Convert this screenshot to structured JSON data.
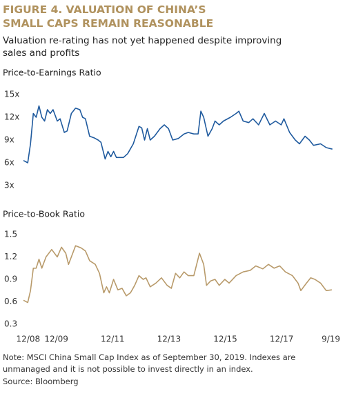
{
  "title": "FIGURE 4. VALUATION OF CHINA’S SMALL CAPS REMAIN REASONABLE",
  "subtitle": "Valuation re-rating has not yet happened despite improving sales and profits",
  "note": "Note: MSCI China Small Cap Index as of September 30, 2019. Indexes are unmanaged and it is not possible to invest directly in an index.",
  "source": "Source: Bloomberg",
  "chart_data": [
    {
      "type": "line",
      "title": "Price-to-Earnings Ratio",
      "color": "#1f5a9e",
      "x": [
        2008.75,
        2008.9,
        2009.0,
        2009.1,
        2009.2,
        2009.3,
        2009.4,
        2009.5,
        2009.6,
        2009.7,
        2009.8,
        2009.95,
        2010.05,
        2010.2,
        2010.3,
        2010.45,
        2010.6,
        2010.75,
        2010.85,
        2010.95,
        2011.1,
        2011.25,
        2011.4,
        2011.5,
        2011.65,
        2011.75,
        2011.85,
        2011.95,
        2012.05,
        2012.3,
        2012.45,
        2012.65,
        2012.85,
        2012.95,
        2013.05,
        2013.15,
        2013.25,
        2013.4,
        2013.6,
        2013.75,
        2013.9,
        2014.05,
        2014.25,
        2014.45,
        2014.6,
        2014.8,
        2014.95,
        2015.05,
        2015.15,
        2015.3,
        2015.45,
        2015.55,
        2015.7,
        2015.85,
        2016.1,
        2016.3,
        2016.4,
        2016.55,
        2016.75,
        2016.9,
        2017.1,
        2017.3,
        2017.5,
        2017.7,
        2017.9,
        2018.0,
        2018.2,
        2018.4,
        2018.55,
        2018.75,
        2018.9,
        2019.05,
        2019.3,
        2019.5,
        2019.72
      ],
      "values": [
        6.3,
        6.0,
        8.5,
        12.5,
        12.0,
        13.5,
        12.0,
        11.5,
        13.0,
        12.5,
        13.0,
        11.5,
        11.8,
        10.0,
        10.2,
        12.5,
        13.2,
        13.0,
        12.0,
        11.8,
        9.5,
        9.3,
        9.0,
        8.7,
        6.5,
        7.5,
        6.8,
        7.5,
        6.7,
        6.7,
        7.2,
        8.5,
        10.8,
        10.6,
        9.0,
        10.5,
        9.0,
        9.5,
        10.5,
        11.0,
        10.5,
        9.0,
        9.2,
        9.8,
        10.0,
        9.8,
        9.8,
        12.8,
        12.0,
        9.5,
        10.5,
        11.5,
        11.0,
        11.5,
        12.0,
        12.5,
        12.8,
        11.5,
        11.3,
        11.8,
        11.0,
        12.5,
        11.0,
        11.5,
        11.0,
        11.8,
        10.0,
        9.0,
        8.5,
        9.5,
        9.0,
        8.3,
        8.5,
        8.0,
        7.8
      ],
      "xlim": [
        2008.7,
        2019.8
      ],
      "ylim": [
        3,
        15
      ],
      "yticks": [
        {
          "value": 15,
          "label": "15x"
        },
        {
          "value": 12,
          "label": "12x"
        },
        {
          "value": 9,
          "label": "9x"
        },
        {
          "value": 6,
          "label": "6x"
        },
        {
          "value": 3,
          "label": "3x"
        }
      ]
    },
    {
      "type": "line",
      "title": "Price-to-Book Ratio",
      "color": "#b89a6a",
      "x": [
        2008.75,
        2008.9,
        2009.0,
        2009.1,
        2009.2,
        2009.3,
        2009.4,
        2009.55,
        2009.75,
        2009.95,
        2010.1,
        2010.25,
        2010.35,
        2010.45,
        2010.6,
        2010.8,
        2010.95,
        2011.1,
        2011.3,
        2011.45,
        2011.6,
        2011.7,
        2011.8,
        2011.95,
        2012.1,
        2012.25,
        2012.4,
        2012.55,
        2012.7,
        2012.85,
        2013.0,
        2013.1,
        2013.25,
        2013.45,
        2013.65,
        2013.85,
        2014.0,
        2014.15,
        2014.3,
        2014.45,
        2014.6,
        2014.8,
        2015.0,
        2015.15,
        2015.25,
        2015.4,
        2015.55,
        2015.7,
        2015.9,
        2016.05,
        2016.3,
        2016.55,
        2016.8,
        2017.0,
        2017.25,
        2017.45,
        2017.65,
        2017.85,
        2018.05,
        2018.3,
        2018.5,
        2018.6,
        2018.8,
        2018.95,
        2019.1,
        2019.3,
        2019.5,
        2019.7
      ],
      "values": [
        0.62,
        0.59,
        0.75,
        1.05,
        1.05,
        1.17,
        1.05,
        1.2,
        1.3,
        1.2,
        1.33,
        1.25,
        1.1,
        1.2,
        1.35,
        1.32,
        1.28,
        1.15,
        1.1,
        0.98,
        0.72,
        0.8,
        0.72,
        0.9,
        0.76,
        0.78,
        0.68,
        0.72,
        0.82,
        0.95,
        0.9,
        0.92,
        0.8,
        0.85,
        0.92,
        0.82,
        0.78,
        0.98,
        0.92,
        1.0,
        0.95,
        0.95,
        1.25,
        1.1,
        0.82,
        0.88,
        0.9,
        0.82,
        0.9,
        0.85,
        0.95,
        1.0,
        1.02,
        1.08,
        1.04,
        1.1,
        1.05,
        1.08,
        1.0,
        0.95,
        0.85,
        0.75,
        0.85,
        0.92,
        0.9,
        0.85,
        0.75,
        0.76
      ],
      "xlim": [
        2008.7,
        2019.8
      ],
      "ylim": [
        0.3,
        1.5
      ],
      "yticks": [
        1.5,
        1.2,
        0.9,
        0.6,
        0.3
      ],
      "xticks": [
        {
          "value": 2008.917,
          "label": "12/08"
        },
        {
          "value": 2009.917,
          "label": "12/09"
        },
        {
          "value": 2011.917,
          "label": "12/11"
        },
        {
          "value": 2013.917,
          "label": "12/13"
        },
        {
          "value": 2015.917,
          "label": "12/15"
        },
        {
          "value": 2017.917,
          "label": "12/17"
        },
        {
          "value": 2019.667,
          "label": "9/19"
        }
      ]
    }
  ]
}
